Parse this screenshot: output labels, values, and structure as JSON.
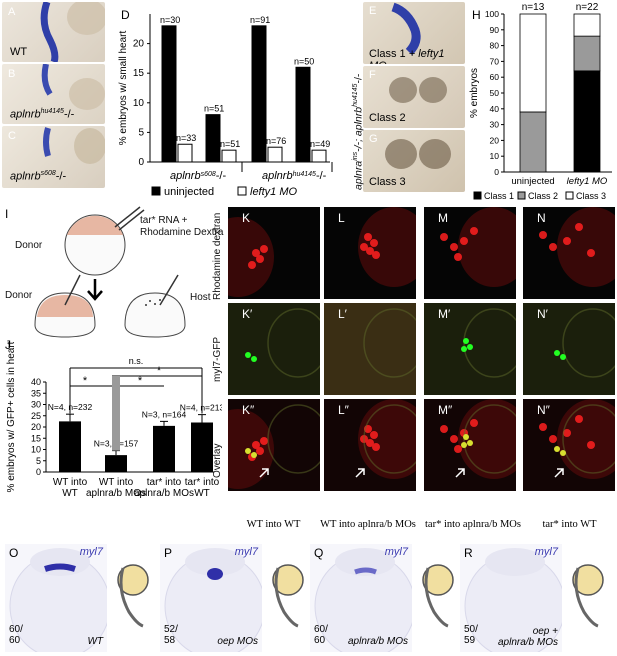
{
  "panels": {
    "A": {
      "letter": "A",
      "caption": "WT"
    },
    "B": {
      "letter": "B",
      "caption": "aplnrb",
      "sup": "hu4145",
      "suffix": "-/-"
    },
    "C": {
      "letter": "C",
      "caption": "aplnrb",
      "sup": "s608",
      "suffix": "-/-"
    },
    "D": {
      "letter": "D"
    },
    "E": {
      "letter": "E",
      "caption": "Class 1",
      "caption2": "+ lefty1 MO"
    },
    "F": {
      "letter": "F",
      "caption": "Class 2"
    },
    "G": {
      "letter": "G",
      "caption": "Class 3"
    },
    "EFG_side": {
      "text": "aplnra",
      "sup1": "ins",
      "mid": "-/-; aplnrb",
      "sup2": "hu4145",
      "end": "-/-"
    },
    "H": {
      "letter": "H"
    },
    "I": {
      "letter": "I",
      "label_tar": "tar* RNA + Rhodamine Dextra",
      "donor_top": "Donor",
      "donor_bottom": "Donor",
      "host": "Host"
    },
    "J": {
      "letter": "J"
    },
    "K": {
      "letter": "K"
    },
    "L": {
      "letter": "L"
    },
    "M": {
      "letter": "M"
    },
    "N": {
      "letter": "N"
    },
    "K1": {
      "letter": "K′"
    },
    "L1": {
      "letter": "L′"
    },
    "M1": {
      "letter": "M′"
    },
    "N1": {
      "letter": "N′"
    },
    "K2": {
      "letter": "K″"
    },
    "L2": {
      "letter": "L″"
    },
    "M2": {
      "letter": "M″"
    },
    "N2": {
      "letter": "N″"
    },
    "row_labels": {
      "r1": "Rhodamine dextran",
      "r2": "myl7-GFP",
      "r3": "Overlay"
    },
    "col_captions": [
      "WT into WT",
      "WT into aplnra/b MOs",
      "tar* into aplnra/b MOs",
      "tar* into WT"
    ],
    "O": {
      "letter": "O",
      "marker": "myl7",
      "count": "60/\n60",
      "cond": "WT"
    },
    "P": {
      "letter": "P",
      "marker": "myl7",
      "count": "52/\n58",
      "cond": "oep MOs"
    },
    "Q": {
      "letter": "Q",
      "marker": "myl7",
      "count": "60/\n60",
      "cond": "aplnra/b MOs"
    },
    "R": {
      "letter": "R",
      "marker": "myl7",
      "count": "50/\n59",
      "cond": "oep +\naplnra/b MOs"
    }
  },
  "chart_data": [
    {
      "id": "D",
      "type": "bar",
      "ylabel": "% embryos w/ small heart",
      "ylim": [
        0,
        25
      ],
      "yticks": [
        0,
        5,
        10,
        15,
        20
      ],
      "groups": [
        {
          "label": "aplnrb s608 -/-",
          "pairs": [
            {
              "uninjected": 23,
              "n_uninjected": "n=30",
              "lefty1": 3,
              "n_lefty1": "n=33"
            },
            {
              "uninjected": 8,
              "n_uninjected": "n=51",
              "lefty1": 2,
              "n_lefty1": "n=51"
            }
          ]
        },
        {
          "label": "aplnrb hu4145 -/-",
          "pairs": [
            {
              "uninjected": 23,
              "n_uninjected": "n=91",
              "lefty1": 2.5,
              "n_lefty1": "n=76"
            },
            {
              "uninjected": 16,
              "n_uninjected": "n=50",
              "lefty1": 2,
              "n_lefty1": "n=49"
            }
          ]
        }
      ],
      "group_labels": [
        "aplnrb",
        "aplnrb"
      ],
      "group_sups": [
        "s608",
        "hu4145"
      ],
      "group_suffix": "-/-",
      "legend": [
        "uninjected",
        "lefty1 MO"
      ],
      "colors": {
        "uninjected": "#000000",
        "lefty1": "#ffffff"
      }
    },
    {
      "id": "H",
      "type": "bar",
      "stacked": true,
      "ylabel": "% embryos",
      "ylim": [
        0,
        100
      ],
      "yticks": [
        0,
        10,
        20,
        30,
        40,
        50,
        60,
        70,
        80,
        90,
        100
      ],
      "categories": [
        "uninjected",
        "lefty1 MO"
      ],
      "n_labels": [
        "n=13",
        "n=22"
      ],
      "series": [
        {
          "name": "Class 1",
          "values": [
            0,
            64
          ],
          "color": "#000000"
        },
        {
          "name": "Class 2",
          "values": [
            38,
            22
          ],
          "color": "#9a9a9a"
        },
        {
          "name": "Class 3",
          "values": [
            62,
            14
          ],
          "color": "#ffffff"
        }
      ]
    },
    {
      "id": "J",
      "type": "bar",
      "ylabel": "% embryos w/ GFP+ cells in heart",
      "ylim": [
        0,
        40
      ],
      "yticks": [
        0,
        5,
        10,
        15,
        20,
        25,
        30,
        35,
        40
      ],
      "categories": [
        "WT into WT",
        "WT into aplnra/b MOs",
        "tar* into aplnra/b MOs",
        "tar* into WT"
      ],
      "values": [
        22.5,
        7.5,
        20.5,
        22
      ],
      "errors": [
        3.2,
        2.0,
        2.0,
        3.5
      ],
      "n_labels": [
        "N=4, n=232",
        "N=3, n=157",
        "N=3, n=164",
        "N=4, n=213"
      ],
      "significance": [
        "*",
        "*",
        "*",
        "n.s."
      ]
    }
  ]
}
